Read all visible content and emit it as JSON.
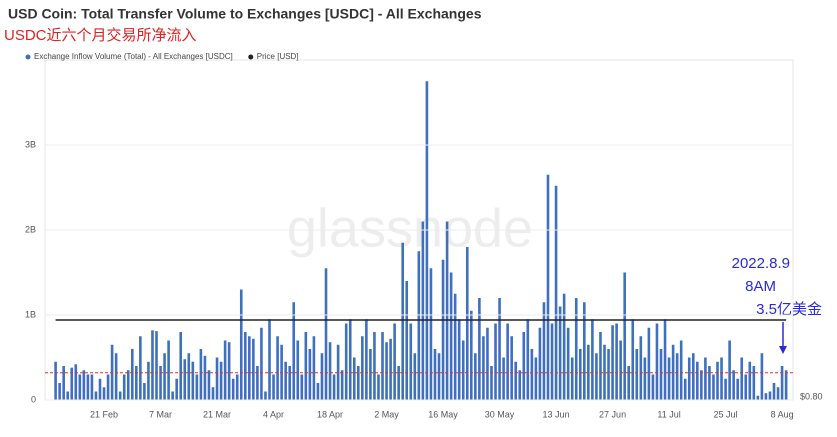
{
  "chart_data": {
    "type": "bar",
    "title": "USD Coin: Total Transfer Volume to Exchanges [USDC] - All Exchanges",
    "subtitle": "USDC近六个月交易所净流入",
    "watermark": "glassnode",
    "annotations": [
      "2022.8.9",
      "8AM",
      "3.5亿美金"
    ],
    "categories": [
      null,
      null,
      null,
      null,
      null,
      null,
      null,
      null,
      null,
      null,
      null,
      null,
      "21 Feb",
      null,
      null,
      null,
      null,
      null,
      null,
      null,
      null,
      null,
      null,
      null,
      null,
      null,
      "7 Mar",
      null,
      null,
      null,
      null,
      null,
      null,
      null,
      null,
      null,
      null,
      null,
      null,
      null,
      "21 Mar",
      null,
      null,
      null,
      null,
      null,
      null,
      null,
      null,
      null,
      null,
      null,
      null,
      null,
      "4 Apr",
      null,
      null,
      null,
      null,
      null,
      null,
      null,
      null,
      null,
      null,
      null,
      null,
      null,
      "18 Apr",
      null,
      null,
      null,
      null,
      null,
      null,
      null,
      null,
      null,
      null,
      null,
      null,
      null,
      "2 May",
      null,
      null,
      null,
      null,
      null,
      null,
      null,
      null,
      null,
      null,
      null,
      null,
      null,
      "16 May",
      null,
      null,
      null,
      null,
      null,
      null,
      null,
      null,
      null,
      null,
      null,
      null,
      null,
      "30 May",
      null,
      null,
      null,
      null,
      null,
      null,
      null,
      null,
      null,
      null,
      null,
      null,
      null,
      "13 Jun",
      null,
      null,
      null,
      null,
      null,
      null,
      null,
      null,
      null,
      null,
      null,
      null,
      null,
      "27 Jun",
      null,
      null,
      null,
      null,
      null,
      null,
      null,
      null,
      null,
      null,
      null,
      null,
      null,
      "11 Jul",
      null,
      null,
      null,
      null,
      null,
      null,
      null,
      null,
      null,
      null,
      null,
      null,
      null,
      "25 Jul",
      null,
      null,
      null,
      null,
      null,
      null,
      null,
      null,
      null,
      null,
      null,
      null,
      null,
      "8 Aug",
      null
    ],
    "series": [
      {
        "name": "Exchange Inflow Volume (Total) - All Exchanges [USDC]",
        "color": "#3f6fbf",
        "values": [
          0.45,
          0.2,
          0.4,
          0.1,
          0.38,
          0.42,
          0.3,
          0.35,
          0.3,
          0.3,
          0.1,
          0.25,
          0.15,
          0.3,
          0.65,
          0.55,
          0.1,
          0.3,
          0.35,
          0.6,
          0.4,
          0.75,
          0.2,
          0.45,
          0.82,
          0.81,
          0.4,
          0.55,
          0.7,
          0.1,
          0.25,
          0.8,
          0.48,
          0.55,
          0.45,
          0.3,
          0.6,
          0.52,
          0.35,
          0.15,
          0.5,
          0.45,
          0.7,
          0.68,
          0.25,
          0.3,
          1.3,
          0.8,
          0.75,
          0.72,
          0.4,
          0.85,
          0.1,
          0.95,
          0.3,
          0.75,
          0.65,
          0.45,
          0.4,
          1.15,
          0.7,
          0.3,
          0.8,
          0.6,
          0.75,
          0.2,
          0.55,
          1.55,
          0.68,
          0.3,
          0.65,
          0.35,
          0.9,
          0.95,
          0.5,
          0.4,
          0.75,
          0.95,
          0.6,
          0.8,
          0.3,
          0.8,
          0.68,
          0.72,
          0.9,
          0.4,
          1.85,
          1.4,
          0.9,
          0.55,
          1.75,
          2.1,
          3.75,
          1.55,
          0.6,
          0.55,
          1.65,
          2.1,
          1.5,
          1.25,
          0.95,
          0.7,
          1.8,
          1.05,
          0.55,
          1.2,
          0.75,
          0.85,
          0.4,
          0.9,
          1.2,
          0.5,
          0.9,
          0.75,
          0.45,
          0.35,
          0.8,
          0.95,
          0.6,
          0.5,
          0.85,
          1.15,
          2.65,
          0.9,
          2.52,
          1.1,
          1.25,
          0.85,
          0.5,
          1.2,
          0.6,
          1.15,
          0.65,
          0.95,
          0.55,
          0.8,
          0.65,
          0.6,
          0.88,
          0.9,
          0.7,
          1.5,
          0.4,
          0.95,
          0.6,
          0.75,
          0.5,
          0.85,
          0.3,
          0.9,
          0.6,
          0.95,
          0.5,
          0.65,
          0.55,
          0.7,
          0.25,
          0.5,
          0.55,
          0.45,
          0.35,
          0.5,
          0.4,
          0.3,
          0.45,
          0.5,
          0.25,
          0.7,
          0.35,
          0.25,
          0.5,
          0.3,
          0.45,
          0.4,
          0.05,
          0.55,
          0.08,
          0.1,
          0.2,
          0.15,
          0.4,
          0.35
        ]
      },
      {
        "name": "Price [USD]",
        "color": "#222222",
        "type": "line",
        "axis": "y2",
        "values": [
          1,
          1,
          1,
          1,
          1,
          1,
          1,
          1,
          1,
          1,
          1,
          1,
          1,
          1,
          1,
          1,
          1,
          1,
          1,
          1,
          1,
          1,
          1,
          1,
          1,
          1,
          1,
          1,
          1,
          1,
          1,
          1,
          1,
          1,
          1,
          1,
          1,
          1,
          1,
          1,
          1,
          1,
          1,
          1,
          1,
          1,
          1,
          1,
          1,
          1,
          1,
          1,
          1,
          1,
          1,
          1,
          1,
          1,
          1,
          1,
          1,
          1,
          1,
          1,
          1,
          1,
          1,
          1,
          1,
          1,
          1,
          1,
          1,
          1,
          1,
          1,
          1,
          1,
          1,
          1,
          1,
          1,
          1,
          1,
          1,
          1,
          1,
          1,
          1,
          1,
          1,
          1,
          1,
          1,
          1,
          1,
          1,
          1,
          1,
          1,
          1,
          1,
          1,
          1,
          1,
          1,
          1,
          1,
          1,
          1,
          1,
          1,
          1,
          1,
          1,
          1,
          1,
          1,
          1,
          1,
          1,
          1,
          1,
          1,
          1,
          1,
          1,
          1,
          1,
          1,
          1,
          1,
          1,
          1,
          1,
          1,
          1,
          1,
          1,
          1,
          1,
          1,
          1,
          1,
          1,
          1,
          1,
          1,
          1,
          1,
          1,
          1,
          1,
          1,
          1,
          1,
          1,
          1,
          1,
          1,
          1,
          1,
          1,
          1,
          1,
          1,
          1,
          1,
          1,
          1,
          1,
          1,
          1,
          1,
          1,
          1,
          1,
          1,
          1,
          1,
          1,
          1
        ]
      }
    ],
    "reference_line": {
      "value": 0.32,
      "color": "#e03030"
    },
    "ylim": [
      0,
      4
    ],
    "yticks": [
      0,
      {
        "value": 1,
        "label": "1B"
      },
      {
        "value": 2,
        "label": "2B"
      },
      {
        "value": 3,
        "label": "3B"
      }
    ],
    "y2lim": [
      0.8,
      1.65
    ],
    "y2ticks": [
      {
        "value": 0.8,
        "label": "$0.80"
      }
    ],
    "grid": true,
    "legend": "top-left"
  }
}
